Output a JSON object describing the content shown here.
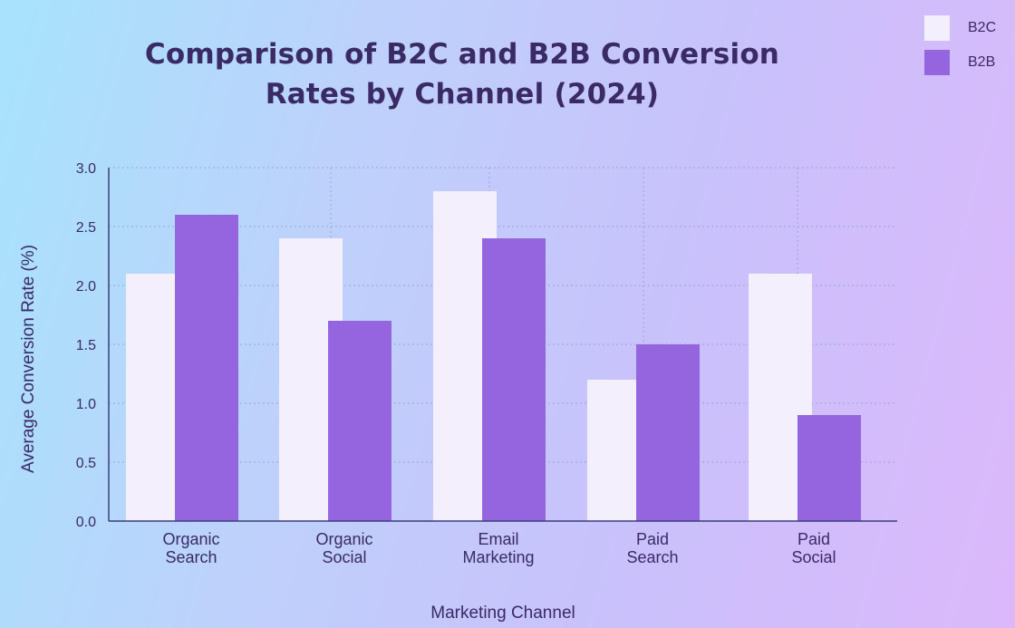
{
  "chart_data": {
    "type": "bar",
    "title_lines": [
      "Comparison of B2C and B2B Conversion",
      "Rates by Channel (2024)"
    ],
    "title": "Comparison of B2C and B2B Conversion Rates by Channel (2024)",
    "xlabel": "Marketing Channel",
    "ylabel": "Average Conversion Rate (%)",
    "categories": [
      [
        "Organic",
        "Search"
      ],
      [
        "Organic",
        "Social"
      ],
      [
        "Email",
        "Marketing"
      ],
      [
        "Paid",
        "Search"
      ],
      [
        "Paid",
        "Social"
      ]
    ],
    "series": [
      {
        "name": "B2C",
        "color": "#f3effc",
        "values": [
          2.1,
          2.4,
          2.8,
          1.2,
          2.1
        ]
      },
      {
        "name": "B2B",
        "color": "#9565e0",
        "values": [
          2.6,
          1.7,
          2.4,
          1.5,
          0.9
        ]
      }
    ],
    "ylim": [
      0,
      3.0
    ],
    "yticks": [
      "0.0",
      "0.5",
      "1.0",
      "1.5",
      "2.0",
      "2.5",
      "3.0"
    ],
    "grid": true,
    "legend_position": "top-right"
  }
}
